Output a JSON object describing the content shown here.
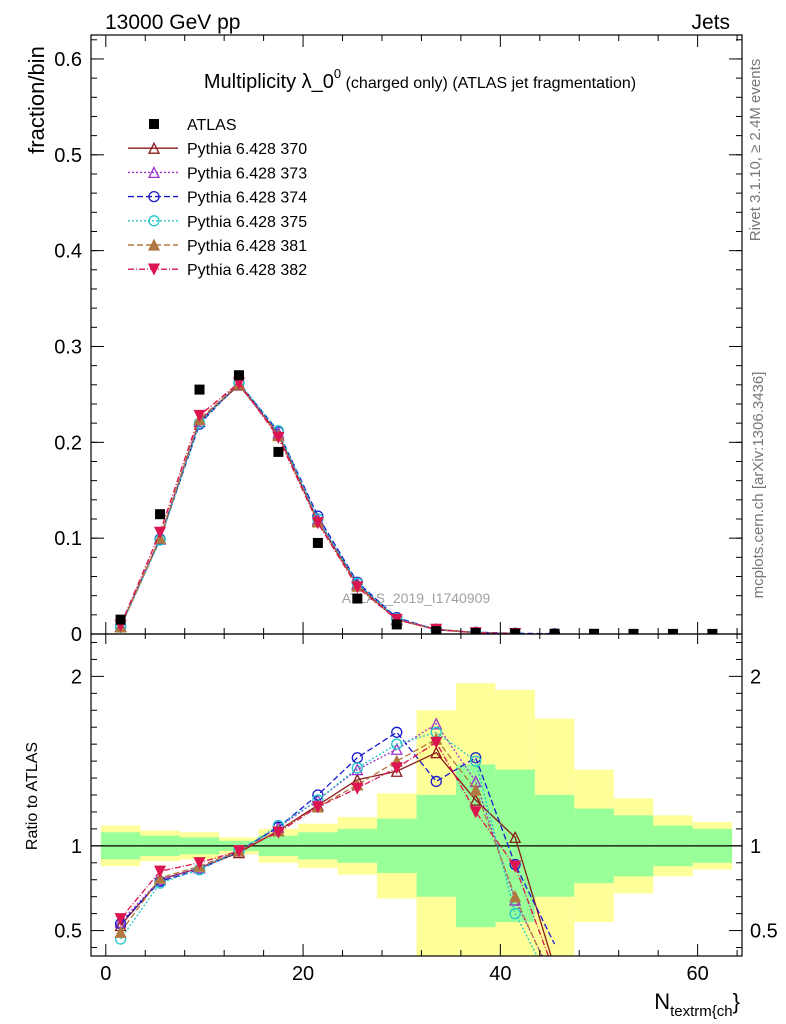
{
  "header": {
    "left": "13000 GeV pp",
    "right": "Jets"
  },
  "side": {
    "rivet": "Rivet 3.1.10, ≥ 2.4M events",
    "mcplots": "mcplots.cern.ch [arXiv:1306.3436]"
  },
  "watermark": "ATLAS_2019_I1740909",
  "chart_data": {
    "type": "line",
    "title": {
      "main": "Multiplicity λ_0",
      "sup": "0",
      "rest": " (charged only) (ATLAS jet fragmentation)"
    },
    "xlabel_main": "N",
    "xlabel_sub": "textrm{ch",
    "xlabel_tail": "}",
    "ylabel": "fraction/bin",
    "ratio_ylabel": "Ratio to ATLAS",
    "xlim": [
      -1.5,
      64.5
    ],
    "ylim": [
      0,
      0.625
    ],
    "ratio_ylim": [
      0.35,
      2.25
    ],
    "x_ticks": [
      0,
      20,
      40,
      60
    ],
    "y_ticks": [
      0,
      0.1,
      0.2,
      0.3,
      0.4,
      0.5,
      0.6
    ],
    "y_tick_labels": [
      "0",
      "0.1",
      "0.2",
      "0.3",
      "0.4",
      "0.5",
      "0.6"
    ],
    "ratio_ticks": [
      0.5,
      1,
      2
    ],
    "ratio_tick_labels": [
      "0.5",
      "1",
      "2"
    ],
    "legend_position": "top-left",
    "data": {
      "name": "ATLAS",
      "x": [
        1.5,
        5.5,
        9.5,
        13.5,
        17.5,
        21.5,
        25.5,
        29.5,
        33.5,
        37.5,
        41.5,
        45.5,
        49.5,
        53.5,
        57.5,
        61.5
      ],
      "y": [
        0.015,
        0.125,
        0.255,
        0.27,
        0.19,
        0.095,
        0.037,
        0.01,
        0.003,
        0.001,
        0.0005,
        0.0003,
        0.0002,
        0.0001,
        0.0001,
        0.0001
      ],
      "band_inner": [
        0.08,
        0.06,
        0.05,
        0.03,
        0.06,
        0.08,
        0.1,
        0.16,
        0.3,
        0.48,
        0.45,
        0.3,
        0.22,
        0.18,
        0.12,
        0.1
      ],
      "band_outer": [
        0.12,
        0.09,
        0.08,
        0.05,
        0.1,
        0.13,
        0.17,
        0.31,
        0.8,
        0.96,
        0.92,
        0.75,
        0.45,
        0.28,
        0.18,
        0.14
      ]
    },
    "series": [
      {
        "name": "Pythia 6.428 370",
        "color": "#8b1a1a",
        "dash": "",
        "marker": "triangle-open",
        "y": [
          0.008,
          0.1,
          0.222,
          0.26,
          0.208,
          0.118,
          0.052,
          0.015,
          0.0047,
          0.0013,
          0.0005
        ],
        "ratio": [
          0.53,
          0.8,
          0.87,
          0.96,
          1.09,
          1.24,
          1.39,
          1.44,
          1.55,
          1.27,
          1.05,
          0.28
        ]
      },
      {
        "name": "Pythia 6.428 373",
        "color": "#9932cc",
        "dash": "2,2",
        "marker": "triangle-open",
        "y": [
          0.008,
          0.099,
          0.222,
          0.262,
          0.21,
          0.12,
          0.053,
          0.016,
          0.005,
          0.0015,
          0.0004
        ],
        "ratio": [
          0.55,
          0.8,
          0.87,
          0.97,
          1.11,
          1.27,
          1.45,
          1.57,
          1.72,
          1.38,
          0.68,
          0.2
        ]
      },
      {
        "name": "Pythia 6.428 374",
        "color": "#1a1acc",
        "dash": "6,3",
        "marker": "circle-open",
        "y": [
          0.008,
          0.099,
          0.219,
          0.262,
          0.211,
          0.123,
          0.054,
          0.017,
          0.0045,
          0.0018,
          0.0007,
          0.00015
        ],
        "ratio": [
          0.54,
          0.79,
          0.86,
          0.97,
          1.11,
          1.3,
          1.52,
          1.67,
          1.38,
          1.52,
          0.89,
          0.42
        ]
      },
      {
        "name": "Pythia 6.428 375",
        "color": "#20c8c8",
        "dash": "2,2",
        "marker": "circle-open",
        "y": [
          0.007,
          0.098,
          0.22,
          0.262,
          0.212,
          0.12,
          0.053,
          0.016,
          0.0048,
          0.0016,
          0.0003
        ],
        "ratio": [
          0.45,
          0.78,
          0.86,
          0.97,
          1.12,
          1.27,
          1.46,
          1.6,
          1.67,
          1.5,
          0.6,
          0.15
        ]
      },
      {
        "name": "Pythia 6.428 381",
        "color": "#b07840",
        "dash": "6,3",
        "marker": "triangle-solid",
        "y": [
          0.0075,
          0.1,
          0.224,
          0.261,
          0.207,
          0.117,
          0.05,
          0.015,
          0.0049,
          0.0014,
          0.0004
        ],
        "ratio": [
          0.49,
          0.81,
          0.88,
          0.97,
          1.09,
          1.23,
          1.36,
          1.5,
          1.63,
          1.33,
          0.7,
          0.18
        ]
      },
      {
        "name": "Pythia 6.428 382",
        "color": "#dc1450",
        "dash": "6,2,1,2",
        "marker": "triangle-down-solid",
        "y": [
          0.009,
          0.106,
          0.228,
          0.262,
          0.205,
          0.116,
          0.049,
          0.015,
          0.0048,
          0.0012,
          0.0004
        ],
        "ratio": [
          0.57,
          0.85,
          0.9,
          0.97,
          1.08,
          1.23,
          1.34,
          1.46,
          1.61,
          1.2,
          0.88,
          0.25
        ]
      }
    ]
  }
}
